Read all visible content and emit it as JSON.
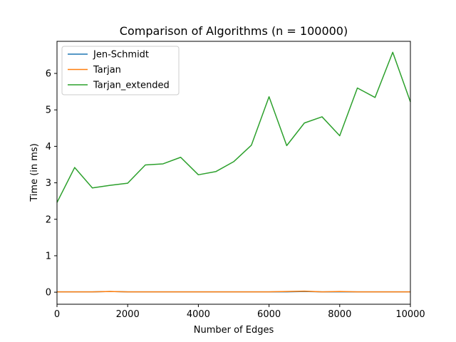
{
  "chart_data": {
    "type": "line",
    "title": "Comparison of Algorithms (n = 100000)",
    "xlabel": "Number of Edges",
    "ylabel": "Time (in ms)",
    "xlim": [
      0,
      10000
    ],
    "ylim": [
      -0.33,
      6.88
    ],
    "xticks": [
      0,
      2000,
      4000,
      6000,
      8000,
      10000
    ],
    "yticks": [
      0,
      1,
      2,
      3,
      4,
      5,
      6
    ],
    "grid": false,
    "legend_position": "top-left",
    "x": [
      0,
      500,
      1000,
      1500,
      2000,
      2500,
      3000,
      3500,
      4000,
      4500,
      5000,
      5500,
      6000,
      6500,
      7000,
      7500,
      8000,
      8500,
      9000,
      9500,
      10000
    ],
    "series": [
      {
        "name": "Jen-Schmidt",
        "color": "#1f77b4",
        "values": [
          0.01,
          0.01,
          0.01,
          0.02,
          0.01,
          0.01,
          0.01,
          0.01,
          0.01,
          0.01,
          0.01,
          0.01,
          0.01,
          0.01,
          0.02,
          0.01,
          0.01,
          0.01,
          0.01,
          0.01,
          0.01
        ]
      },
      {
        "name": "Tarjan",
        "color": "#ff7f0e",
        "values": [
          0.01,
          0.01,
          0.01,
          0.02,
          0.01,
          0.01,
          0.01,
          0.01,
          0.01,
          0.01,
          0.01,
          0.01,
          0.01,
          0.02,
          0.03,
          0.01,
          0.02,
          0.01,
          0.01,
          0.01,
          0.01
        ]
      },
      {
        "name": "Tarjan_extended",
        "color": "#2ca02c",
        "values": [
          2.46,
          3.42,
          2.86,
          2.93,
          2.99,
          3.49,
          3.52,
          3.7,
          3.22,
          3.31,
          3.58,
          4.03,
          5.36,
          4.02,
          4.64,
          4.81,
          4.29,
          5.6,
          5.34,
          6.58,
          5.22
        ]
      }
    ]
  }
}
